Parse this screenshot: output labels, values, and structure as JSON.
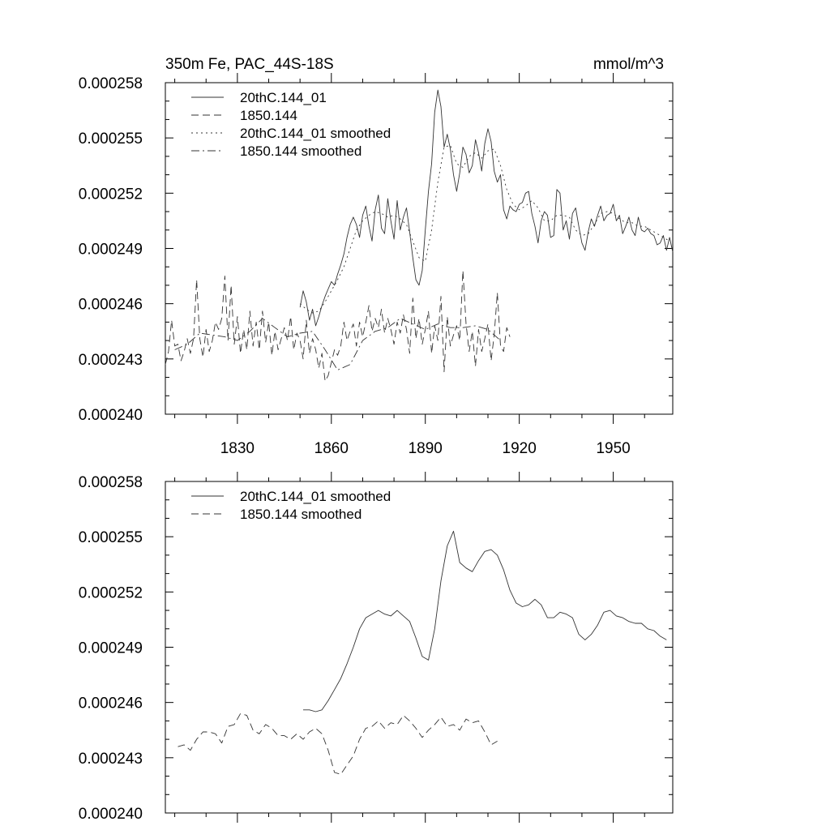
{
  "chart_data": [
    {
      "type": "line",
      "title": "350m Fe, PAC_44S-18S",
      "units": "mmol/m^3",
      "xlim": [
        1807,
        1969
      ],
      "ylim": [
        0.00024,
        0.000258
      ],
      "xticks": [
        1830,
        1860,
        1890,
        1920,
        1950
      ],
      "xtick_labels": [
        "1830",
        "1860",
        "1890",
        "1920",
        "1950"
      ],
      "yticks": [
        0.00024,
        0.000243,
        0.000246,
        0.000249,
        0.000252,
        0.000255,
        0.000258
      ],
      "ytick_labels": [
        "0.000240",
        "0.000243",
        "0.000246",
        "0.000249",
        "0.000252",
        "0.000255",
        "0.000258"
      ],
      "legend_position": "top-left",
      "series": [
        {
          "name": "20thC.144_01",
          "dash": "solid",
          "x": [
            1850,
            1851,
            1852,
            1853,
            1854,
            1855,
            1856,
            1857,
            1858,
            1859,
            1860,
            1861,
            1862,
            1863,
            1864,
            1865,
            1866,
            1867,
            1868,
            1869,
            1870,
            1871,
            1872,
            1873,
            1874,
            1875,
            1876,
            1877,
            1878,
            1879,
            1880,
            1881,
            1882,
            1883,
            1884,
            1885,
            1886,
            1887,
            1888,
            1889,
            1890,
            1891,
            1892,
            1893,
            1894,
            1895,
            1896,
            1897,
            1898,
            1899,
            1900,
            1901,
            1902,
            1903,
            1904,
            1905,
            1906,
            1907,
            1908,
            1909,
            1910,
            1911,
            1912,
            1913,
            1914,
            1915,
            1916,
            1917,
            1918,
            1919,
            1920,
            1921,
            1922,
            1923,
            1924,
            1925,
            1926,
            1927,
            1928,
            1929,
            1930,
            1931,
            1932,
            1933,
            1934,
            1935,
            1936,
            1937,
            1938,
            1939,
            1940,
            1941,
            1942,
            1943,
            1944,
            1945,
            1946,
            1947,
            1948,
            1949,
            1950,
            1951,
            1952,
            1953,
            1954,
            1955,
            1956,
            1957,
            1958,
            1959,
            1960,
            1961,
            1962,
            1963,
            1964,
            1965,
            1966,
            1967,
            1968,
            1969
          ],
          "y": [
            0.0002458,
            0.0002467,
            0.0002461,
            0.0002451,
            0.0002457,
            0.0002448,
            0.0002453,
            0.0002459,
            0.0002464,
            0.0002468,
            0.0002472,
            0.000247,
            0.0002476,
            0.0002481,
            0.0002487,
            0.0002496,
            0.0002503,
            0.0002507,
            0.0002503,
            0.0002496,
            0.0002508,
            0.0002513,
            0.0002502,
            0.0002494,
            0.0002511,
            0.0002519,
            0.0002501,
            0.0002498,
            0.0002517,
            0.0002505,
            0.0002495,
            0.0002516,
            0.00025,
            0.0002507,
            0.0002512,
            0.0002499,
            0.0002485,
            0.0002473,
            0.000247,
            0.0002478,
            0.00025,
            0.0002521,
            0.0002536,
            0.0002564,
            0.0002576,
            0.0002567,
            0.0002545,
            0.0002552,
            0.0002544,
            0.000253,
            0.0002521,
            0.0002531,
            0.0002545,
            0.0002541,
            0.0002531,
            0.0002535,
            0.0002549,
            0.0002542,
            0.0002532,
            0.0002547,
            0.0002555,
            0.0002548,
            0.0002532,
            0.0002526,
            0.000253,
            0.0002511,
            0.0002506,
            0.0002513,
            0.0002511,
            0.000251,
            0.0002514,
            0.0002515,
            0.000252,
            0.0002521,
            0.0002509,
            0.0002502,
            0.0002493,
            0.0002505,
            0.000251,
            0.0002508,
            0.0002496,
            0.0002497,
            0.0002522,
            0.000252,
            0.00025,
            0.0002505,
            0.0002495,
            0.0002509,
            0.0002512,
            0.0002502,
            0.0002493,
            0.0002489,
            0.0002499,
            0.0002506,
            0.0002502,
            0.0002508,
            0.0002513,
            0.0002505,
            0.0002508,
            0.0002509,
            0.0002514,
            0.0002505,
            0.0002508,
            0.0002498,
            0.0002502,
            0.0002507,
            0.00025,
            0.0002497,
            0.0002507,
            0.00025,
            0.0002499,
            0.0002501,
            0.0002498,
            0.0002497,
            0.0002492,
            0.0002493,
            0.0002497,
            0.0002489,
            0.0002496,
            0.0002488
          ]
        },
        {
          "name": "1850.144",
          "dash": "long-dash",
          "x": [
            1807,
            1808,
            1809,
            1810,
            1811,
            1812,
            1813,
            1814,
            1815,
            1816,
            1817,
            1818,
            1819,
            1820,
            1821,
            1822,
            1823,
            1824,
            1825,
            1826,
            1827,
            1828,
            1829,
            1830,
            1831,
            1832,
            1833,
            1834,
            1835,
            1836,
            1837,
            1838,
            1839,
            1840,
            1841,
            1842,
            1843,
            1844,
            1845,
            1846,
            1847,
            1848,
            1849,
            1850,
            1851,
            1852,
            1853,
            1854,
            1855,
            1856,
            1857,
            1858,
            1859,
            1860,
            1861,
            1862,
            1863,
            1864,
            1865,
            1866,
            1867,
            1868,
            1869,
            1870,
            1871,
            1872,
            1873,
            1874,
            1875,
            1876,
            1877,
            1878,
            1879,
            1880,
            1881,
            1882,
            1883,
            1884,
            1885,
            1886,
            1887,
            1888,
            1889,
            1890,
            1891,
            1892,
            1893,
            1894,
            1895,
            1896,
            1897,
            1898,
            1899,
            1900,
            1901,
            1902,
            1903,
            1904,
            1905,
            1906,
            1907,
            1908,
            1909,
            1910,
            1911,
            1912,
            1913,
            1914,
            1915,
            1916,
            1917
          ],
          "y": [
            0.0002427,
            0.0002434,
            0.0002451,
            0.0002437,
            0.0002438,
            0.0002429,
            0.0002434,
            0.0002441,
            0.0002433,
            0.0002441,
            0.0002473,
            0.0002441,
            0.0002431,
            0.0002446,
            0.0002434,
            0.000244,
            0.000245,
            0.0002446,
            0.0002452,
            0.0002475,
            0.000244,
            0.000247,
            0.0002438,
            0.0002453,
            0.0002433,
            0.0002446,
            0.0002435,
            0.0002456,
            0.0002437,
            0.000245,
            0.0002435,
            0.0002456,
            0.0002439,
            0.000245,
            0.0002432,
            0.0002445,
            0.0002435,
            0.0002441,
            0.0002447,
            0.000244,
            0.0002453,
            0.0002435,
            0.0002444,
            0.000244,
            0.000243,
            0.0002451,
            0.0002433,
            0.0002441,
            0.0002435,
            0.0002425,
            0.0002433,
            0.0002418,
            0.0002421,
            0.0002428,
            0.0002435,
            0.0002432,
            0.0002437,
            0.000245,
            0.000244,
            0.0002445,
            0.0002449,
            0.0002437,
            0.000245,
            0.0002442,
            0.000245,
            0.0002459,
            0.0002445,
            0.0002452,
            0.0002447,
            0.0002457,
            0.0002444,
            0.0002452,
            0.0002446,
            0.0002438,
            0.000245,
            0.0002444,
            0.0002454,
            0.0002446,
            0.0002433,
            0.0002463,
            0.0002441,
            0.0002452,
            0.0002438,
            0.0002446,
            0.0002456,
            0.0002433,
            0.0002448,
            0.000244,
            0.0002464,
            0.0002423,
            0.0002453,
            0.0002437,
            0.0002443,
            0.0002448,
            0.000244,
            0.0002478,
            0.0002449,
            0.0002434,
            0.0002445,
            0.0002426,
            0.0002446,
            0.0002434,
            0.0002441,
            0.0002449,
            0.0002429,
            0.0002443,
            0.0002466,
            0.0002437,
            0.0002434,
            0.0002447,
            0.0002442
          ]
        },
        {
          "name": "20thC.144_01 smoothed",
          "dash": "dotted",
          "x": [
            1850,
            1852,
            1854,
            1856,
            1858,
            1860,
            1862,
            1864,
            1866,
            1868,
            1870,
            1872,
            1874,
            1876,
            1878,
            1880,
            1882,
            1884,
            1886,
            1888,
            1890,
            1892,
            1894,
            1896,
            1898,
            1900,
            1902,
            1904,
            1906,
            1908,
            1910,
            1912,
            1914,
            1916,
            1918,
            1920,
            1922,
            1924,
            1926,
            1928,
            1930,
            1932,
            1934,
            1936,
            1938,
            1940,
            1942,
            1944,
            1946,
            1948,
            1950,
            1952,
            1954,
            1956,
            1958,
            1960,
            1962,
            1964,
            1966,
            1968
          ],
          "y": [
            0.000246,
            0.0002457,
            0.0002455,
            0.0002456,
            0.0002461,
            0.0002467,
            0.0002473,
            0.000248,
            0.000249,
            0.00025,
            0.0002505,
            0.0002508,
            0.000251,
            0.0002509,
            0.0002507,
            0.0002508,
            0.0002506,
            0.0002503,
            0.0002494,
            0.0002485,
            0.0002483,
            0.00025,
            0.0002526,
            0.0002545,
            0.0002546,
            0.0002536,
            0.0002534,
            0.000254,
            0.0002542,
            0.0002539,
            0.0002543,
            0.0002544,
            0.0002535,
            0.0002522,
            0.0002514,
            0.0002511,
            0.0002513,
            0.0002516,
            0.0002512,
            0.0002505,
            0.0002505,
            0.0002508,
            0.0002508,
            0.0002507,
            0.00025,
            0.0002497,
            0.0002498,
            0.0002503,
            0.0002509,
            0.000251,
            0.0002509,
            0.0002506,
            0.0002504,
            0.0002504,
            0.0002502,
            0.0002502,
            0.00025,
            0.0002498,
            0.0002496,
            0.0002494
          ]
        },
        {
          "name": "1850.144 smoothed",
          "dash": "dash-dot",
          "x": [
            1810,
            1814,
            1818,
            1822,
            1826,
            1830,
            1834,
            1838,
            1842,
            1846,
            1850,
            1854,
            1858,
            1862,
            1866,
            1870,
            1874,
            1878,
            1882,
            1886,
            1890,
            1894,
            1898,
            1902,
            1906,
            1910,
            1914
          ],
          "y": [
            0.0002435,
            0.0002438,
            0.0002444,
            0.0002443,
            0.0002442,
            0.000244,
            0.0002445,
            0.0002452,
            0.0002447,
            0.0002442,
            0.0002444,
            0.0002445,
            0.0002435,
            0.0002424,
            0.0002427,
            0.000244,
            0.0002445,
            0.0002447,
            0.0002452,
            0.0002449,
            0.0002446,
            0.0002449,
            0.0002447,
            0.0002447,
            0.0002448,
            0.0002446,
            0.000244
          ]
        }
      ]
    },
    {
      "type": "line",
      "title": "",
      "xlim": [
        1807,
        1969
      ],
      "ylim": [
        0.00024,
        0.000258
      ],
      "xticks": [
        1830,
        1860,
        1890,
        1920,
        1950
      ],
      "xtick_labels": [],
      "yticks": [
        0.00024,
        0.000243,
        0.000246,
        0.000249,
        0.000252,
        0.000255,
        0.000258
      ],
      "ytick_labels": [
        "0.000240",
        "0.000243",
        "0.000246",
        "0.000249",
        "0.000252",
        "0.000255",
        "0.000258"
      ],
      "legend_position": "top-left",
      "series": [
        {
          "name": "20thC.144_01 smoothed",
          "dash": "solid",
          "x": [
            1851,
            1853,
            1855,
            1857,
            1859,
            1861,
            1863,
            1865,
            1867,
            1869,
            1871,
            1873,
            1875,
            1877,
            1879,
            1881,
            1883,
            1885,
            1887,
            1889,
            1891,
            1893,
            1895,
            1897,
            1899,
            1901,
            1903,
            1905,
            1907,
            1909,
            1911,
            1913,
            1915,
            1917,
            1919,
            1921,
            1923,
            1925,
            1927,
            1929,
            1931,
            1933,
            1935,
            1937,
            1939,
            1941,
            1943,
            1945,
            1947,
            1949,
            1951,
            1953,
            1955,
            1957,
            1959,
            1961,
            1963,
            1965,
            1967
          ],
          "y": [
            0.0002456,
            0.0002456,
            0.0002455,
            0.0002456,
            0.0002461,
            0.0002467,
            0.0002473,
            0.0002481,
            0.000249,
            0.00025,
            0.0002506,
            0.0002508,
            0.000251,
            0.0002508,
            0.0002507,
            0.000251,
            0.0002507,
            0.0002504,
            0.0002495,
            0.0002485,
            0.0002483,
            0.00025,
            0.0002526,
            0.0002545,
            0.0002553,
            0.0002536,
            0.0002533,
            0.0002531,
            0.0002537,
            0.0002542,
            0.0002543,
            0.000254,
            0.0002532,
            0.0002521,
            0.0002514,
            0.0002512,
            0.0002513,
            0.0002516,
            0.0002513,
            0.0002506,
            0.0002506,
            0.0002509,
            0.0002508,
            0.0002506,
            0.0002497,
            0.0002494,
            0.0002497,
            0.0002502,
            0.0002509,
            0.000251,
            0.0002507,
            0.0002506,
            0.0002504,
            0.0002503,
            0.0002503,
            0.00025,
            0.0002499,
            0.0002496,
            0.0002494
          ]
        },
        {
          "name": "1850.144 smoothed",
          "dash": "long-dash",
          "x": [
            1811,
            1813,
            1815,
            1817,
            1819,
            1821,
            1823,
            1825,
            1827,
            1829,
            1831,
            1833,
            1835,
            1837,
            1839,
            1841,
            1843,
            1845,
            1847,
            1849,
            1851,
            1853,
            1855,
            1857,
            1859,
            1861,
            1863,
            1865,
            1867,
            1869,
            1871,
            1873,
            1875,
            1877,
            1879,
            1881,
            1883,
            1885,
            1887,
            1889,
            1891,
            1893,
            1895,
            1897,
            1899,
            1901,
            1903,
            1905,
            1907,
            1909,
            1911,
            1913
          ],
          "y": [
            0.0002436,
            0.0002437,
            0.0002434,
            0.000244,
            0.0002444,
            0.0002444,
            0.0002443,
            0.0002438,
            0.0002447,
            0.0002448,
            0.0002454,
            0.0002453,
            0.0002445,
            0.0002443,
            0.0002448,
            0.0002446,
            0.0002442,
            0.0002442,
            0.000244,
            0.0002443,
            0.000244,
            0.0002444,
            0.0002446,
            0.0002443,
            0.0002434,
            0.0002422,
            0.0002421,
            0.0002426,
            0.0002431,
            0.000244,
            0.0002446,
            0.0002447,
            0.000245,
            0.0002446,
            0.0002449,
            0.0002448,
            0.0002453,
            0.000245,
            0.0002446,
            0.0002441,
            0.0002445,
            0.0002448,
            0.0002452,
            0.0002447,
            0.0002448,
            0.0002445,
            0.0002451,
            0.0002449,
            0.000245,
            0.0002444,
            0.0002437,
            0.0002439
          ]
        }
      ]
    }
  ]
}
